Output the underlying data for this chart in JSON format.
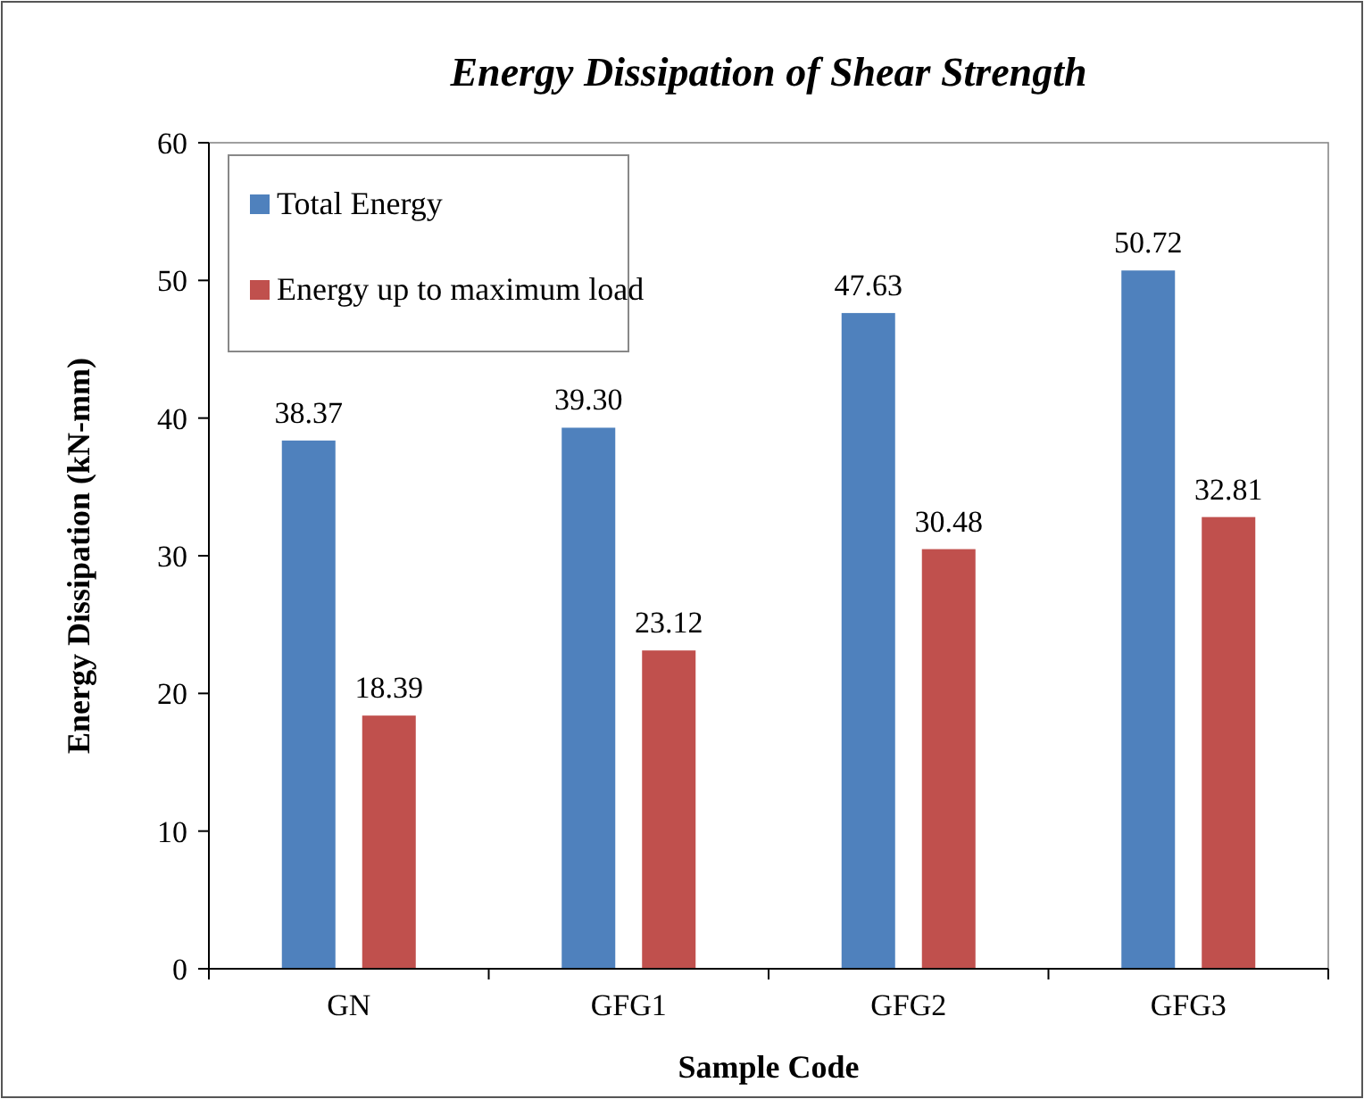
{
  "chart_data": {
    "type": "bar",
    "title": "Energy Dissipation of Shear Strength",
    "xlabel": "Sample Code",
    "ylabel": "Energy Dissipation (kN-mm)",
    "categories": [
      "GN",
      "GFG1",
      "GFG2",
      "GFG3"
    ],
    "series": [
      {
        "name": "Total Energy",
        "color": "#4f81bd",
        "values": [
          38.37,
          39.3,
          47.63,
          50.72
        ],
        "value_labels": [
          "38.37",
          "39.30",
          "47.63",
          "50.72"
        ]
      },
      {
        "name": "Energy up to maximum load",
        "color": "#c0504d",
        "values": [
          18.39,
          23.12,
          30.48,
          32.81
        ],
        "value_labels": [
          "18.39",
          "23.12",
          "30.48",
          "32.81"
        ]
      }
    ],
    "ylim": [
      0,
      60
    ],
    "yticks": [
      0,
      10,
      20,
      30,
      40,
      50,
      60
    ],
    "grid": false,
    "legend": "top left"
  }
}
